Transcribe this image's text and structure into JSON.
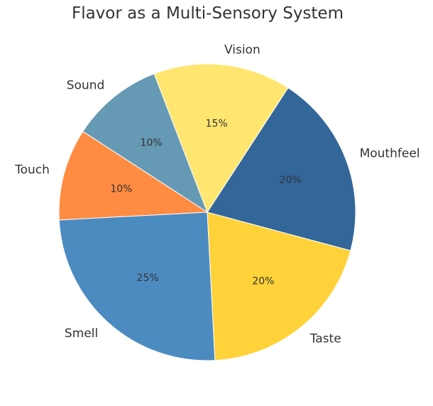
{
  "chart_data": {
    "type": "pie",
    "title": "Flavor as a Multi-Sensory System",
    "slices": [
      {
        "label": "Mouthfeel",
        "value": 20,
        "pct_text": "20%",
        "color": "#336699"
      },
      {
        "label": "Vision",
        "value": 15,
        "pct_text": "15%",
        "color": "#FFE671"
      },
      {
        "label": "Sound",
        "value": 10,
        "pct_text": "10%",
        "color": "#6699B4"
      },
      {
        "label": "Touch",
        "value": 10,
        "pct_text": "10%",
        "color": "#FF8C42"
      },
      {
        "label": "Smell",
        "value": 25,
        "pct_text": "25%",
        "color": "#4C8BC0"
      },
      {
        "label": "Taste",
        "value": 20,
        "pct_text": "20%",
        "color": "#FFD23A"
      }
    ]
  }
}
